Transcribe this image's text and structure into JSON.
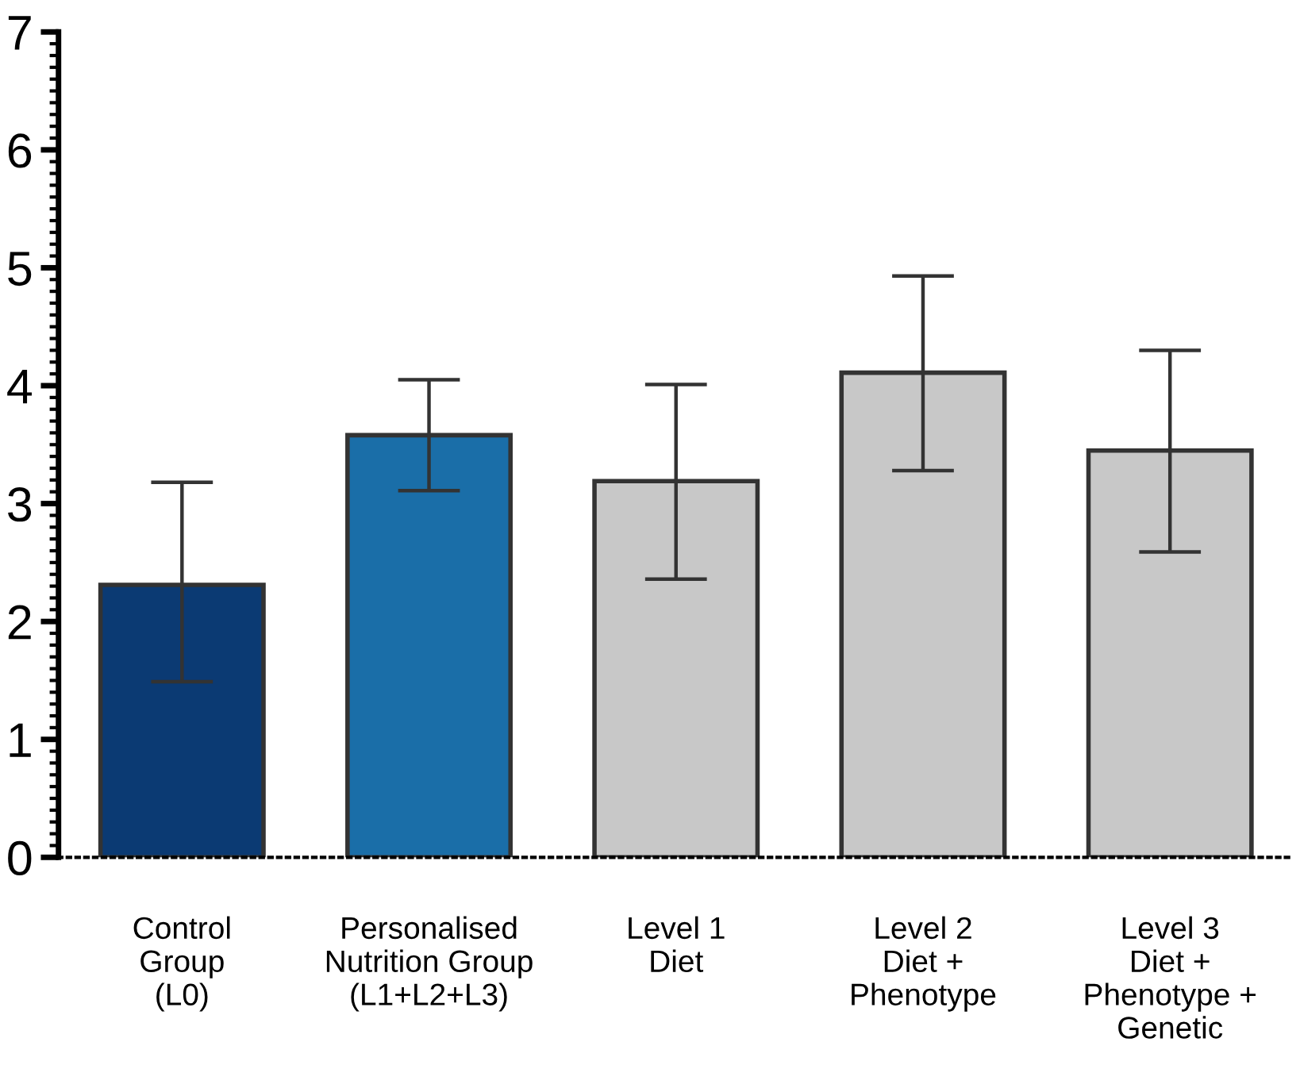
{
  "chart_data": {
    "type": "bar",
    "categories": [
      "Control\nGroup\n(L0)",
      "Personalised\nNutrition Group\n(L1+L2+L3)",
      "Level 1\nDiet",
      "Level 2\nDiet +\nPhenotype",
      "Level 3\nDiet +\nPhenotype +\nGenetic"
    ],
    "values": [
      2.31,
      3.58,
      3.19,
      4.11,
      3.45
    ],
    "errors": [
      [
        1.49,
        3.18
      ],
      [
        3.11,
        4.05
      ],
      [
        2.36,
        4.01
      ],
      [
        3.28,
        4.93
      ],
      [
        2.59,
        4.3
      ]
    ],
    "colors": [
      "#0b3a73",
      "#1a6ea8",
      "#c8c8c8",
      "#c8c8c8",
      "#c8c8c8"
    ],
    "ylim": [
      0,
      7
    ],
    "yticks": [
      0,
      1,
      2,
      3,
      4,
      5,
      6,
      7
    ],
    "grid": false
  }
}
